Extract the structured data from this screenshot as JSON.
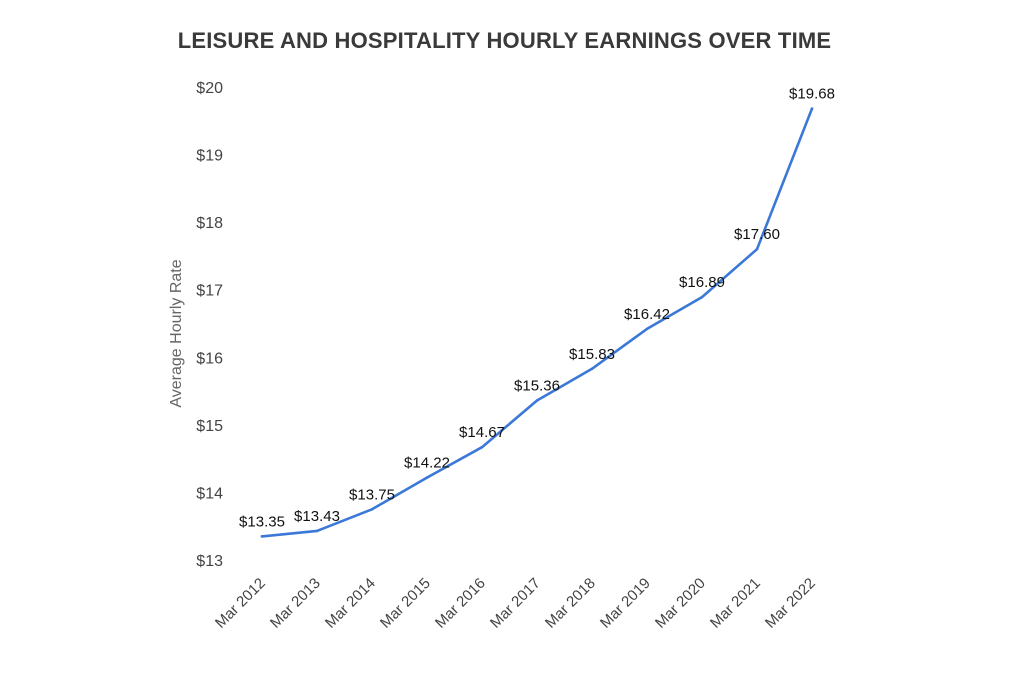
{
  "chart_data": {
    "type": "line",
    "title": "LEISURE AND HOSPITALITY HOURLY EARNINGS OVER TIME",
    "ylabel": "Average Hourly Rate",
    "xlabel": "",
    "categories": [
      "Mar 2012",
      "Mar 2013",
      "Mar 2014",
      "Mar 2015",
      "Mar 2016",
      "Mar 2017",
      "Mar 2018",
      "Mar 2019",
      "Mar 2020",
      "Mar 2021",
      "Mar 2022"
    ],
    "values": [
      13.35,
      13.43,
      13.75,
      14.22,
      14.67,
      15.36,
      15.83,
      16.42,
      16.89,
      17.6,
      19.68
    ],
    "data_labels": [
      "$13.35",
      "$13.43",
      "$13.75",
      "$14.22",
      "$14.67",
      "$15.36",
      "$15.83",
      "$16.42",
      "$16.89",
      "$17.60",
      "$19.68"
    ],
    "ylim": [
      13,
      20
    ],
    "yticks": [
      13,
      14,
      15,
      16,
      17,
      18,
      19,
      20
    ],
    "ytick_labels": [
      "$13",
      "$14",
      "$15",
      "$16",
      "$17",
      "$18",
      "$19",
      "$20"
    ],
    "grid": false,
    "legend": "none",
    "line_color": "#3b78d8"
  }
}
